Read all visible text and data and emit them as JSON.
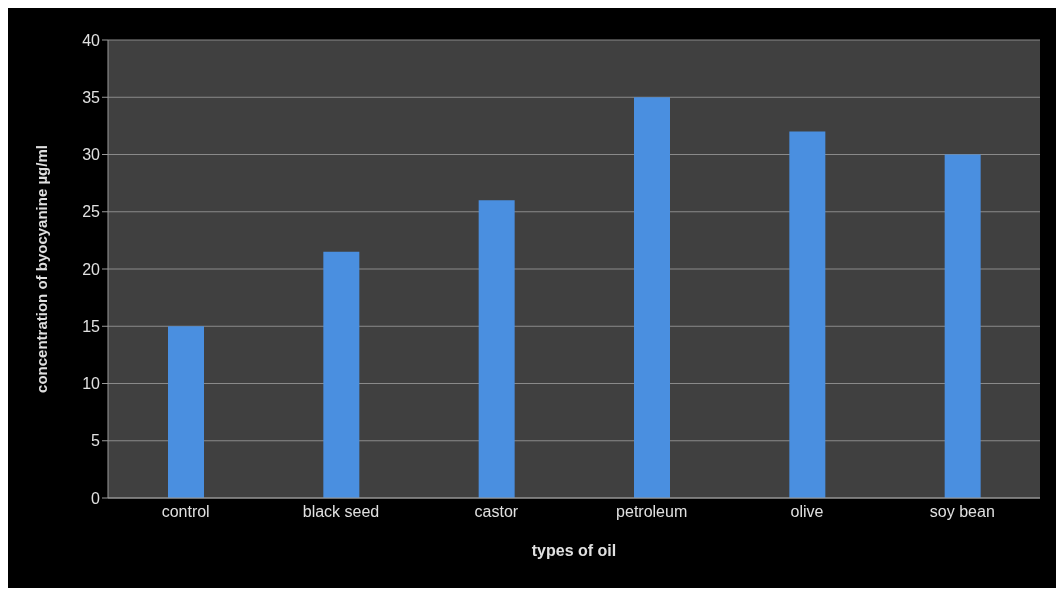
{
  "chart_data": {
    "type": "bar",
    "xlabel": "types of oil",
    "ylabel": "concentration of byocyanine µg/ml",
    "categories": [
      "control",
      "black seed",
      "castor",
      "petroleum",
      "olive",
      "soy bean"
    ],
    "values": [
      15,
      21.5,
      26,
      35,
      32,
      30
    ],
    "color": "#4a8fe0",
    "ylim": [
      0,
      40
    ],
    "yticks": [
      0,
      5,
      10,
      15,
      20,
      25,
      30,
      35,
      40
    ],
    "grid": "y"
  }
}
